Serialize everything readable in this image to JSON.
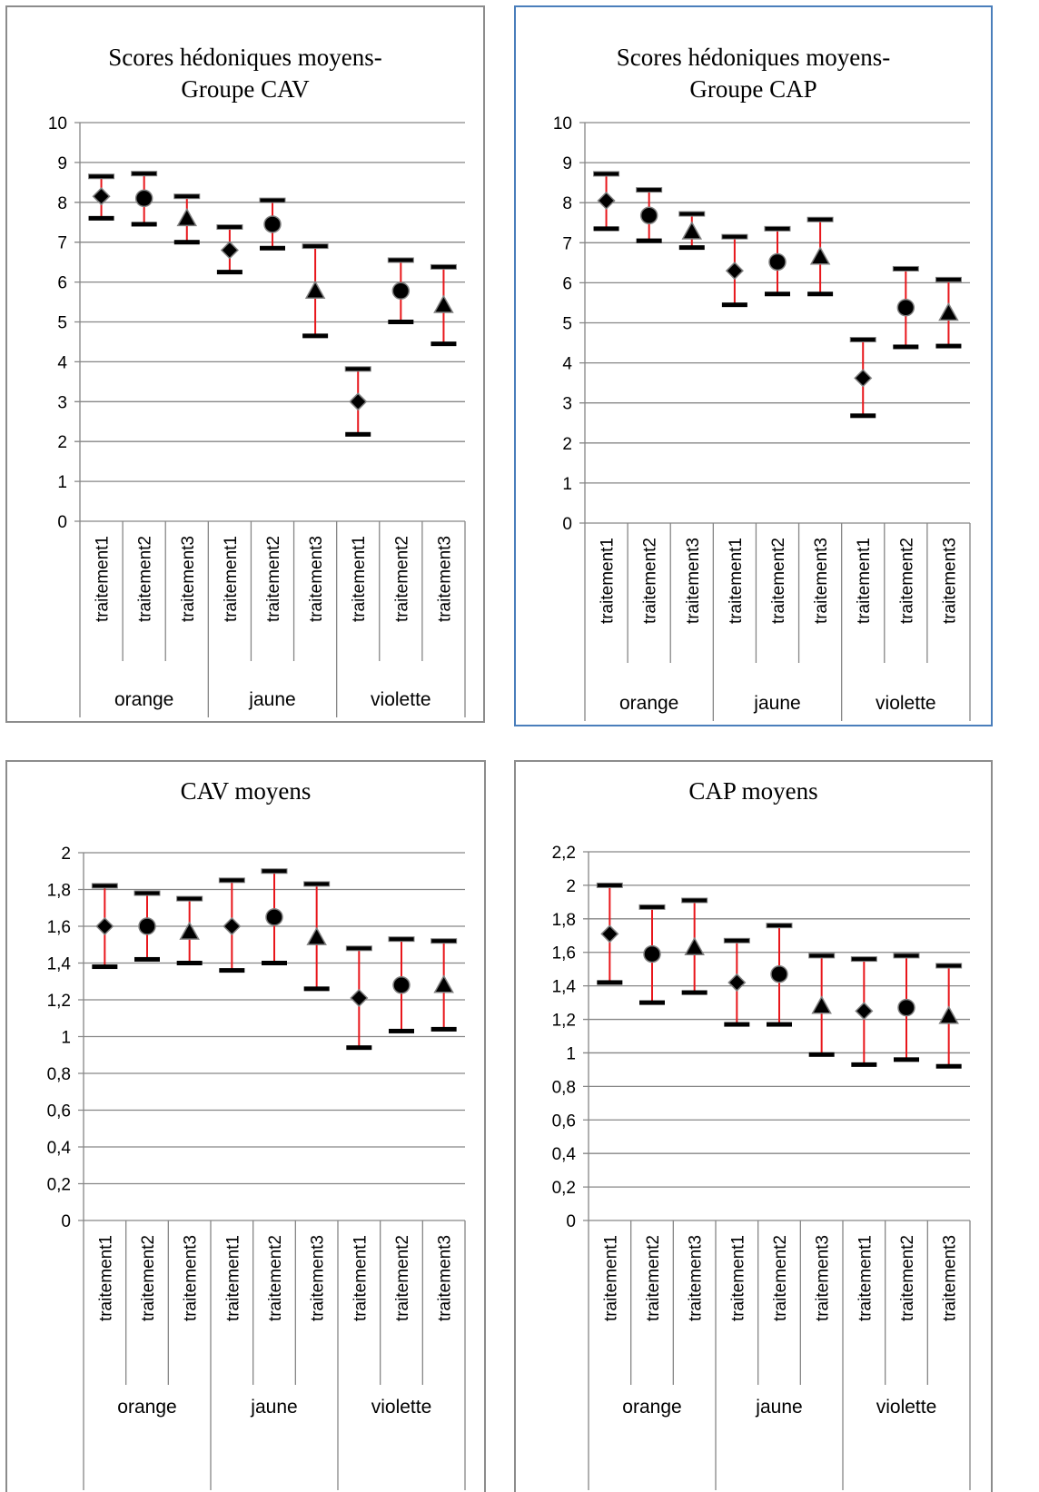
{
  "charts": [
    {
      "title_lines": [
        "Scores hédoniques moyens-",
        "Groupe CAV"
      ],
      "chart_data": {
        "type": "scatter",
        "title": "Scores hédoniques moyens- Groupe CAV",
        "ylim": [
          0,
          10
        ],
        "yticks": [
          "0",
          "1",
          "2",
          "3",
          "4",
          "5",
          "6",
          "7",
          "8",
          "9",
          "10"
        ],
        "groups": [
          "orange",
          "jaune",
          "violette"
        ],
        "categories": [
          "traitement1",
          "traitement2",
          "traitement3",
          "traitement1",
          "traitement2",
          "traitement3",
          "traitement1",
          "traitement2",
          "traitement3"
        ],
        "markers": [
          "diamond",
          "circle",
          "triangle",
          "diamond",
          "circle",
          "triangle",
          "diamond",
          "circle",
          "triangle"
        ],
        "values": [
          8.15,
          8.1,
          7.6,
          6.8,
          7.45,
          5.78,
          3.0,
          5.78,
          5.42
        ],
        "error_high": [
          8.65,
          8.72,
          8.15,
          7.38,
          8.05,
          6.9,
          3.82,
          6.55,
          6.38
        ],
        "error_low": [
          7.6,
          7.45,
          7.0,
          6.25,
          6.85,
          4.65,
          2.18,
          5.0,
          4.45
        ],
        "grid": true
      }
    },
    {
      "title_lines": [
        "Scores hédoniques moyens-",
        "Groupe CAP"
      ],
      "chart_data": {
        "type": "scatter",
        "title": "Scores hédoniques moyens- Groupe CAP",
        "ylim": [
          0,
          10
        ],
        "yticks": [
          "0",
          "1",
          "2",
          "3",
          "4",
          "5",
          "6",
          "7",
          "8",
          "9",
          "10"
        ],
        "groups": [
          "orange",
          "jaune",
          "violette"
        ],
        "categories": [
          "traitement1",
          "traitement2",
          "traitement3",
          "traitement1",
          "traitement2",
          "traitement3",
          "traitement1",
          "traitement2",
          "traitement3"
        ],
        "markers": [
          "diamond",
          "circle",
          "triangle",
          "diamond",
          "circle",
          "triangle",
          "diamond",
          "circle",
          "triangle"
        ],
        "values": [
          8.05,
          7.68,
          7.28,
          6.3,
          6.52,
          6.65,
          3.62,
          5.38,
          5.25
        ],
        "error_high": [
          8.72,
          8.32,
          7.72,
          7.15,
          7.35,
          7.58,
          4.58,
          6.35,
          6.08
        ],
        "error_low": [
          7.35,
          7.05,
          6.88,
          5.45,
          5.72,
          5.72,
          2.68,
          4.4,
          4.42
        ],
        "grid": true
      }
    },
    {
      "title_lines": [
        "CAV moyens"
      ],
      "chart_data": {
        "type": "scatter",
        "title": "CAV moyens",
        "ylim": [
          0,
          2
        ],
        "yticks": [
          "0",
          "0,2",
          "0,4",
          "0,6",
          "0,8",
          "1",
          "1,2",
          "1,4",
          "1,6",
          "1,8",
          "2"
        ],
        "groups": [
          "orange",
          "jaune",
          "violette"
        ],
        "categories": [
          "traitement1",
          "traitement2",
          "traitement3",
          "traitement1",
          "traitement2",
          "traitement3",
          "traitement1",
          "traitement2",
          "traitement3"
        ],
        "markers": [
          "diamond",
          "circle",
          "triangle",
          "diamond",
          "circle",
          "triangle",
          "diamond",
          "circle",
          "triangle"
        ],
        "values": [
          1.6,
          1.6,
          1.57,
          1.6,
          1.65,
          1.54,
          1.21,
          1.28,
          1.28
        ],
        "error_high": [
          1.82,
          1.78,
          1.75,
          1.85,
          1.9,
          1.83,
          1.48,
          1.53,
          1.52
        ],
        "error_low": [
          1.38,
          1.42,
          1.4,
          1.36,
          1.4,
          1.26,
          0.94,
          1.03,
          1.04
        ],
        "grid": true
      }
    },
    {
      "title_lines": [
        "CAP moyens"
      ],
      "chart_data": {
        "type": "scatter",
        "title": "CAP moyens",
        "ylim": [
          0,
          2.2
        ],
        "yticks": [
          "0",
          "0,2",
          "0,4",
          "0,6",
          "0,8",
          "1",
          "1,2",
          "1,4",
          "1,6",
          "1,8",
          "2",
          "2,2"
        ],
        "groups": [
          "orange",
          "jaune",
          "violette"
        ],
        "categories": [
          "traitement1",
          "traitement2",
          "traitement3",
          "traitement1",
          "traitement2",
          "traitement3",
          "traitement1",
          "traitement2",
          "traitement3"
        ],
        "markers": [
          "diamond",
          "circle",
          "triangle",
          "diamond",
          "circle",
          "triangle",
          "diamond",
          "circle",
          "triangle"
        ],
        "values": [
          1.71,
          1.59,
          1.63,
          1.42,
          1.47,
          1.28,
          1.25,
          1.27,
          1.22
        ],
        "error_high": [
          2.0,
          1.87,
          1.91,
          1.67,
          1.76,
          1.58,
          1.56,
          1.58,
          1.52
        ],
        "error_low": [
          1.42,
          1.3,
          1.36,
          1.17,
          1.17,
          0.99,
          0.93,
          0.96,
          0.92
        ],
        "grid": true
      }
    }
  ],
  "colors": {
    "error_bar": "#e8161b",
    "cap_stroke": "#000000",
    "marker_fill": "#000000",
    "marker_stroke": "#808080",
    "grid": "#868686",
    "panel_border_default": "#8c8c8c",
    "panel_border_selected": "#4a7ebb"
  }
}
